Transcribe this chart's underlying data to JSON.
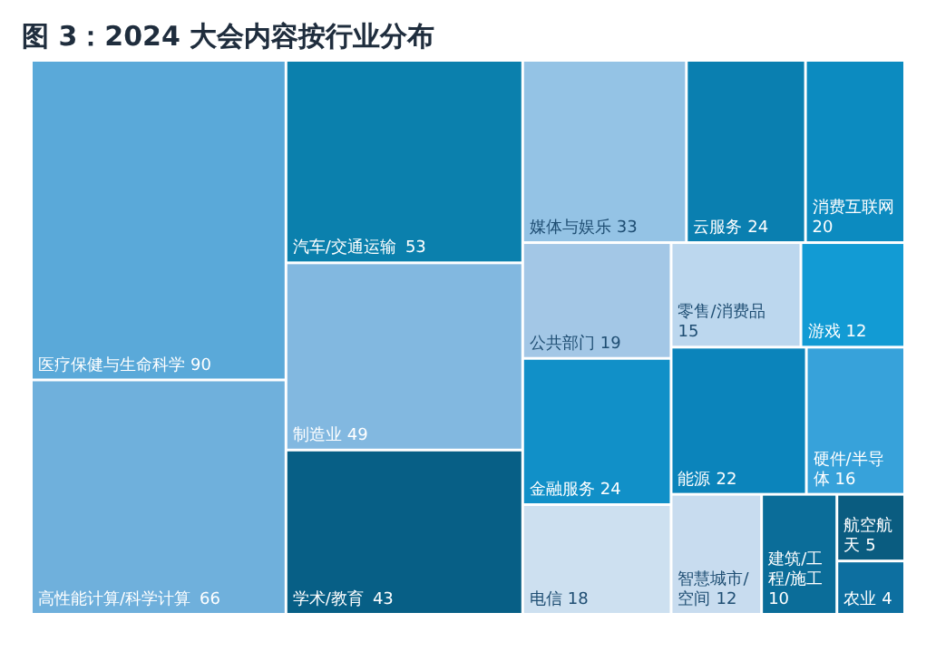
{
  "chart_data": {
    "type": "other",
    "title": "图 3：2024 大会内容按行业分布",
    "categories": [
      "医疗保健与生命科学",
      "高性能计算/科学计算",
      "汽车/交通运输",
      "制造业",
      "学术/教育",
      "媒体与娱乐",
      "云服务",
      "消费互联网",
      "公共部门",
      "金融服务",
      "电信",
      "零售/消费品",
      "游戏",
      "能源",
      "硬件/半导体",
      "智慧城市/空间",
      "建筑/工程/施工",
      "航空航天",
      "农业"
    ],
    "values": [
      90,
      66,
      53,
      49,
      43,
      33,
      24,
      20,
      19,
      24,
      18,
      15,
      12,
      22,
      16,
      12,
      10,
      5,
      4
    ],
    "colors": [
      "#5aa9d9",
      "#6fb0dc",
      "#0b80ad",
      "#82b8e0",
      "#075f86",
      "#94c3e5",
      "#0a7fb0",
      "#0c8bc0",
      "#a3c7e6",
      "#1190c8",
      "#cde0f0",
      "#bcd7ee",
      "#129bd4",
      "#0b84bb",
      "#37a2da",
      "#c8dcef",
      "#0b6d99",
      "#0a5c80",
      "#0d6fa0"
    ],
    "data_labels": true
  }
}
